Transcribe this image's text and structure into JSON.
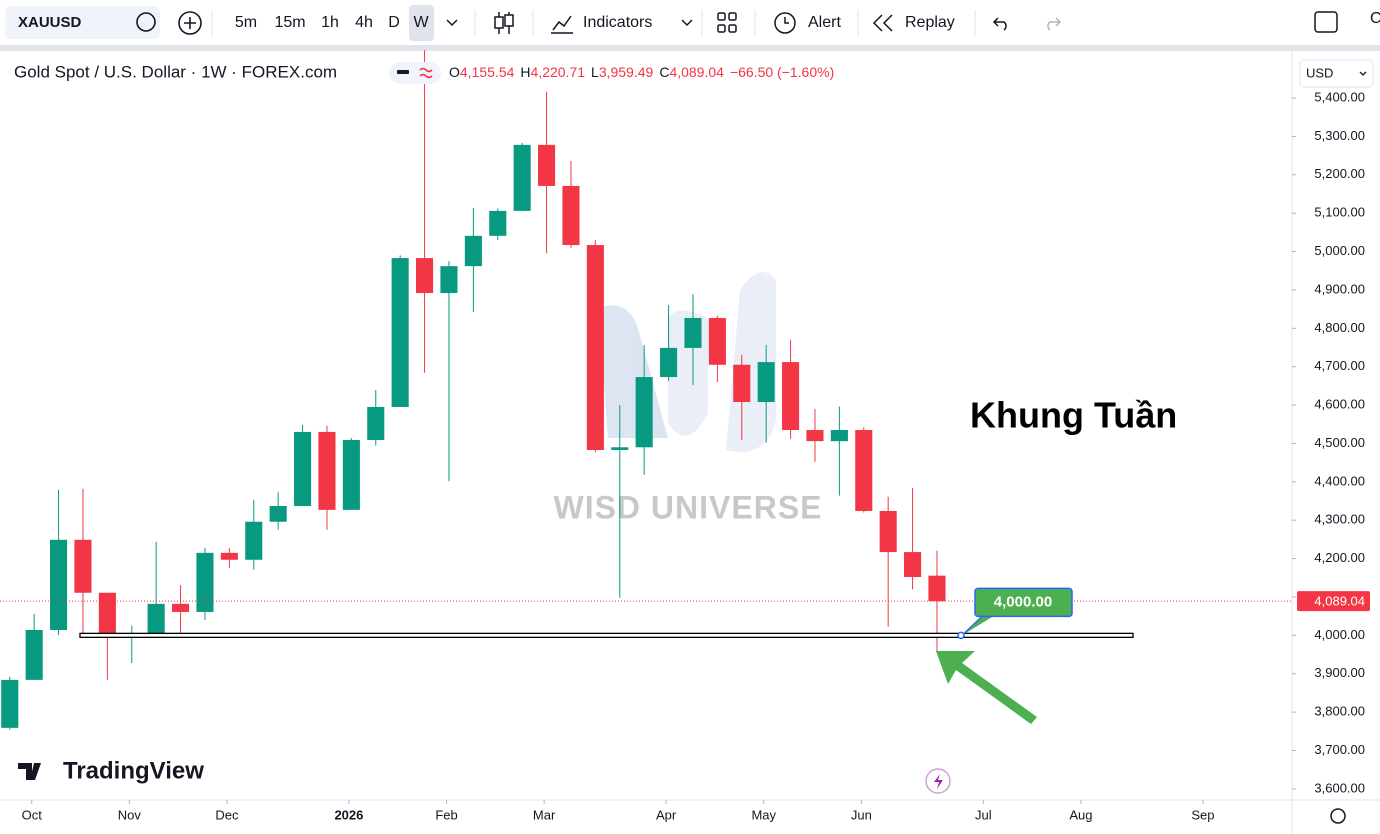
{
  "toolbar": {
    "symbol": "XAUUSD",
    "intervals": [
      "5m",
      "15m",
      "1h",
      "4h",
      "D",
      "W"
    ],
    "indicators": "Indicators",
    "alert": "Alert",
    "replay": "Replay",
    "account_initial": "C"
  },
  "legend": {
    "title": "Gold Spot / U.S. Dollar · 1W · FOREX.com",
    "o_label": "O",
    "o": "4,155.54",
    "h_label": "H",
    "h": "4,220.71",
    "l_label": "L",
    "l": "3,959.49",
    "c_label": "C",
    "c": "4,089.04",
    "change": "−66.50 (−1.60%)"
  },
  "currency": "USD",
  "logo": "TradingView",
  "chart_data": {
    "type": "candlestick",
    "x": [
      0,
      1,
      2,
      3,
      4,
      5,
      6,
      7,
      8,
      9,
      10,
      11,
      12,
      13,
      14,
      15,
      16,
      17,
      18,
      19,
      20,
      21,
      22,
      23,
      24,
      25,
      26,
      27,
      28,
      29,
      30,
      31,
      32,
      33,
      34,
      35,
      36,
      37,
      38
    ],
    "open": [
      3759,
      3884,
      4014,
      4249,
      4111,
      3999,
      3999,
      4082,
      4061,
      4215,
      4197,
      4296,
      4337,
      4530,
      4327,
      4509,
      4595,
      4983,
      4892,
      4962,
      5041,
      5106,
      5278,
      5171,
      5017,
      4483,
      4490,
      4673,
      4749,
      4827,
      4705,
      4608,
      4712,
      4535,
      4506,
      4535,
      4324,
      4217,
      4155.54
    ],
    "high": [
      3892,
      4056,
      4379,
      4382,
      4111,
      4025,
      4244,
      4131,
      4228,
      4228,
      4353,
      4373,
      4548,
      4546,
      4514,
      4639,
      4990,
      5525,
      4975,
      5114,
      5112,
      5283,
      5416,
      5236,
      5030,
      4600,
      4757,
      4861,
      4889,
      4832,
      4731,
      4757,
      4770,
      4590,
      4596,
      4542,
      4361,
      4384,
      4220.71
    ],
    "low": [
      3754,
      3884,
      4001,
      3996,
      3884,
      3928,
      3999,
      3999,
      4040,
      4176,
      4171,
      4275,
      4337,
      4275,
      4327,
      4495,
      4595,
      4684,
      4402,
      4843,
      5030,
      5106,
      4996,
      5010,
      4478,
      4098,
      4418,
      4663,
      4652,
      4660,
      4509,
      4502,
      4512,
      4452,
      4364,
      4320,
      4022,
      4120,
      3959.49
    ],
    "close": [
      3884,
      4014,
      4249,
      4111,
      3999,
      4003,
      4082,
      4061,
      4215,
      4197,
      4296,
      4337,
      4530,
      4327,
      4509,
      4595,
      4983,
      4892,
      4962,
      5041,
      5106,
      5278,
      5171,
      5017,
      4483,
      4490,
      4673,
      4749,
      4827,
      4705,
      4608,
      4712,
      4535,
      4506,
      4535,
      4324,
      4217,
      4152,
      4089.04
    ],
    "up_color": "#089981",
    "down_color": "#f23645",
    "xlim": [
      -0.4,
      52.55
    ],
    "ylim": [
      3571,
      5434
    ],
    "xticks": [
      {
        "value": 0.9,
        "label": "Oct"
      },
      {
        "value": 4.9,
        "label": "Nov"
      },
      {
        "value": 8.9,
        "label": "Dec"
      },
      {
        "value": 13.9,
        "label": "2026",
        "bold": true
      },
      {
        "value": 17.9,
        "label": "Feb"
      },
      {
        "value": 21.9,
        "label": "Mar"
      },
      {
        "value": 26.9,
        "label": "Apr"
      },
      {
        "value": 30.9,
        "label": "May"
      },
      {
        "value": 34.9,
        "label": "Jun"
      },
      {
        "value": 39.9,
        "label": "Jul"
      },
      {
        "value": 43.9,
        "label": "Aug"
      },
      {
        "value": 48.9,
        "label": "Sep"
      }
    ],
    "yticks": [
      {
        "value": 3600,
        "label": "3,600.00"
      },
      {
        "value": 3700,
        "label": "3,700.00"
      },
      {
        "value": 3800,
        "label": "3,800.00"
      },
      {
        "value": 3900,
        "label": "3,900.00"
      },
      {
        "value": 4000,
        "label": "4,000.00"
      },
      {
        "value": 4100,
        "label": "4,100.00"
      },
      {
        "value": 4200,
        "label": "4,200.00"
      },
      {
        "value": 4300,
        "label": "4,300.00"
      },
      {
        "value": 4400,
        "label": "4,400.00"
      },
      {
        "value": 4500,
        "label": "4,500.00"
      },
      {
        "value": 4600,
        "label": "4,600.00"
      },
      {
        "value": 4700,
        "label": "4,700.00"
      },
      {
        "value": 4800,
        "label": "4,800.00"
      },
      {
        "value": 4900,
        "label": "4,900.00"
      },
      {
        "value": 5000,
        "label": "5,000.00"
      },
      {
        "value": 5100,
        "label": "5,100.00"
      },
      {
        "value": 5200,
        "label": "5,200.00"
      },
      {
        "value": 5300,
        "label": "5,300.00"
      },
      {
        "value": 5400,
        "label": "5,400.00"
      }
    ],
    "hline": 4000,
    "hline_label": "4,000.00",
    "last_label": "4,089.04",
    "annotation": "Khung Tuần",
    "watermark": "WISD UNIVERSE"
  }
}
